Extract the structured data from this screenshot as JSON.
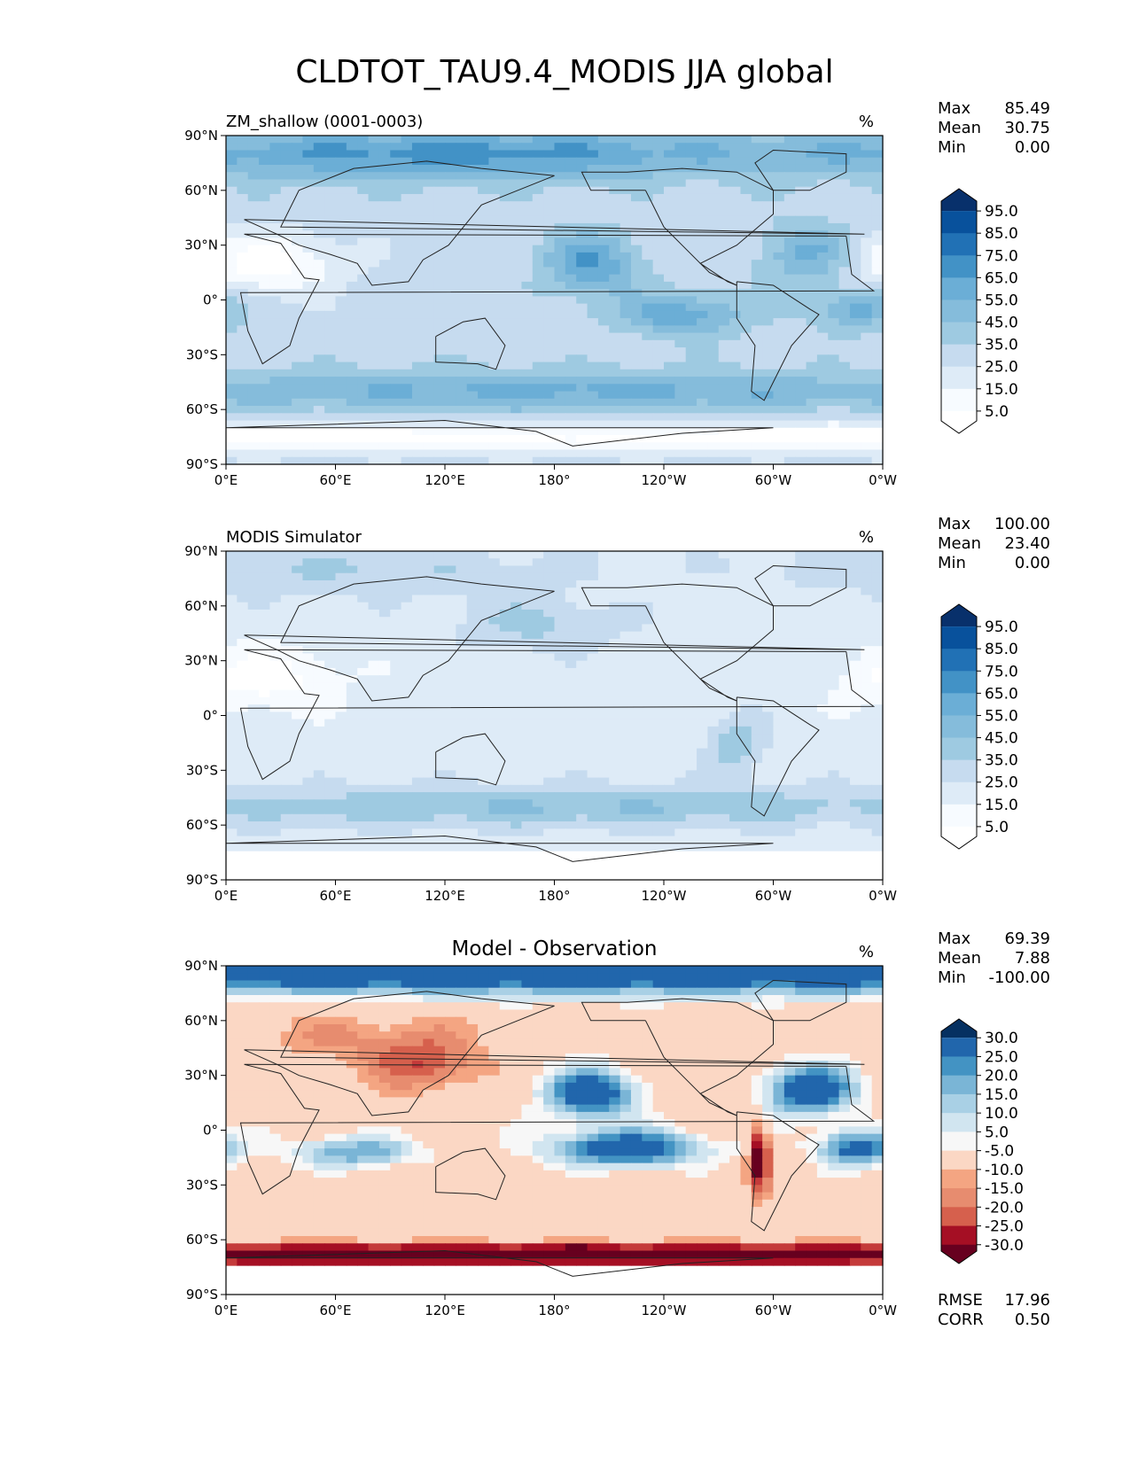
{
  "figure_title": "CLDTOT_TAU9.4_MODIS JJA global",
  "colors": {
    "blues": [
      "#ffffff",
      "#f7fbff",
      "#deebf7",
      "#c6dbef",
      "#9ecae1",
      "#85bcdb",
      "#6baed6",
      "#4292c6",
      "#2171b5",
      "#08519c",
      "#08306b"
    ],
    "diff": [
      "#67001f",
      "#a50f24",
      "#c43a3a",
      "#d6604d",
      "#e78c6f",
      "#f4a582",
      "#fbd7c4",
      "#f7f7f7",
      "#d1e5f0",
      "#a9d0e5",
      "#7ab5d6",
      "#4393c3",
      "#2166ac",
      "#053061"
    ]
  },
  "icons": [
    "hex-colorbar-extension"
  ],
  "chart_data": [
    {
      "type": "heatmap",
      "id": "test",
      "title_left": "ZM_shallow (0001-0003)",
      "units": "%",
      "stats": [
        {
          "label": "Max",
          "value": "85.49"
        },
        {
          "label": "Mean",
          "value": "30.75"
        },
        {
          "label": "Min",
          "value": "0.00"
        }
      ],
      "colorbar_levels": [
        "95.0",
        "85.0",
        "75.0",
        "65.0",
        "55.0",
        "45.0",
        "35.0",
        "25.0",
        "15.0",
        "5.0"
      ],
      "field": {
        "base": 30,
        "amplitude": 1.0,
        "blobs": [
          {
            "lon": 60,
            "lat": 80,
            "slon": 90,
            "slat": 10,
            "amp": 30
          },
          {
            "lon": 200,
            "lat": 80,
            "slon": 80,
            "slat": 10,
            "amp": 25
          },
          {
            "lon": 200,
            "lat": 20,
            "slon": 18,
            "slat": 12,
            "amp": 35
          },
          {
            "lon": 320,
            "lat": 25,
            "slon": 18,
            "slat": 12,
            "amp": 30
          },
          {
            "lon": 250,
            "lat": -8,
            "slon": 25,
            "slat": 8,
            "amp": 32
          },
          {
            "lon": 345,
            "lat": -5,
            "slon": 15,
            "slat": 8,
            "amp": 30
          },
          {
            "lon": 180,
            "lat": -50,
            "slon": 180,
            "slat": 8,
            "amp": 28
          },
          {
            "lon": 0,
            "lat": -75,
            "slon": 400,
            "slat": 6,
            "amp": -30
          },
          {
            "lon": 20,
            "lat": 20,
            "slon": 30,
            "slat": 12,
            "amp": -30
          }
        ]
      },
      "lat_ticks": [
        "90°N",
        "60°N",
        "30°N",
        "0°",
        "30°S",
        "60°S",
        "90°S"
      ],
      "lon_ticks": [
        "0°E",
        "60°E",
        "120°E",
        "180°",
        "120°W",
        "60°W",
        "0°W"
      ],
      "lat_values": [
        90,
        60,
        30,
        0,
        -30,
        -60,
        -90
      ],
      "lon_values": [
        0,
        60,
        120,
        180,
        240,
        300,
        360
      ],
      "colorbar": "blues"
    },
    {
      "type": "heatmap",
      "id": "ref",
      "title_left": "MODIS Simulator",
      "units": "%",
      "stats": [
        {
          "label": "Max",
          "value": "100.00"
        },
        {
          "label": "Mean",
          "value": "23.40"
        },
        {
          "label": "Min",
          "value": "0.00"
        }
      ],
      "colorbar_levels": [
        "95.0",
        "85.0",
        "75.0",
        "65.0",
        "55.0",
        "45.0",
        "35.0",
        "25.0",
        "15.0",
        "5.0"
      ],
      "field": {
        "base": 20,
        "amplitude": 1.0,
        "blobs": [
          {
            "lon": 60,
            "lat": 80,
            "slon": 90,
            "slat": 10,
            "amp": 15
          },
          {
            "lon": 170,
            "lat": 50,
            "slon": 30,
            "slat": 10,
            "amp": 18
          },
          {
            "lon": 180,
            "lat": -50,
            "slon": 180,
            "slat": 8,
            "amp": 25
          },
          {
            "lon": 280,
            "lat": -15,
            "slon": 10,
            "slat": 10,
            "amp": 25
          },
          {
            "lon": 20,
            "lat": 20,
            "slon": 30,
            "slat": 12,
            "amp": -20
          }
        ],
        "missing_south_of": -72
      },
      "lat_ticks": [
        "90°N",
        "60°N",
        "30°N",
        "0°",
        "30°S",
        "60°S",
        "90°S"
      ],
      "lon_ticks": [
        "0°E",
        "60°E",
        "120°E",
        "180°",
        "120°W",
        "60°W",
        "0°W"
      ],
      "lat_values": [
        90,
        60,
        30,
        0,
        -30,
        -60,
        -90
      ],
      "lon_values": [
        0,
        60,
        120,
        180,
        240,
        300,
        360
      ],
      "colorbar": "blues"
    },
    {
      "type": "heatmap",
      "id": "diff",
      "title_center": "Model - Observation",
      "units": "%",
      "stats": [
        {
          "label": "Max",
          "value": "69.39"
        },
        {
          "label": "Mean",
          "value": "7.88"
        },
        {
          "label": "Min",
          "value": "-100.00"
        }
      ],
      "metrics": [
        {
          "label": "RMSE",
          "value": "17.96"
        },
        {
          "label": "CORR",
          "value": "0.50"
        }
      ],
      "colorbar_levels": [
        "30.0",
        "25.0",
        "20.0",
        "15.0",
        "10.0",
        "5.0",
        "-5.0",
        "-10.0",
        "-15.0",
        "-20.0",
        "-25.0",
        "-30.0"
      ],
      "field": {
        "base": 0,
        "amplitude": 1.0,
        "blobs": [
          {
            "lon": 180,
            "lat": 85,
            "slon": 400,
            "slat": 8,
            "amp": 40
          },
          {
            "lon": 200,
            "lat": 20,
            "slon": 18,
            "slat": 10,
            "amp": 40
          },
          {
            "lon": 320,
            "lat": 22,
            "slon": 18,
            "slat": 10,
            "amp": 40
          },
          {
            "lon": 220,
            "lat": -10,
            "slon": 30,
            "slat": 7,
            "amp": 40
          },
          {
            "lon": 345,
            "lat": -10,
            "slon": 15,
            "slat": 7,
            "amp": 35
          },
          {
            "lon": 70,
            "lat": -12,
            "slon": 25,
            "slat": 6,
            "amp": 25
          },
          {
            "lon": 180,
            "lat": -68,
            "slon": 400,
            "slat": 4,
            "amp": -45
          },
          {
            "lon": 110,
            "lat": 35,
            "slon": 20,
            "slat": 10,
            "amp": -18
          },
          {
            "lon": 292,
            "lat": -15,
            "slon": 4,
            "slat": 12,
            "amp": -40
          },
          {
            "lon": 75,
            "lat": 50,
            "slon": 40,
            "slat": 10,
            "amp": -10
          }
        ],
        "missing_south_of": -72
      },
      "lat_ticks": [
        "90°N",
        "60°N",
        "30°N",
        "0°",
        "30°S",
        "60°S",
        "90°S"
      ],
      "lon_ticks": [
        "0°E",
        "60°E",
        "120°E",
        "180°",
        "120°W",
        "60°W",
        "0°W"
      ],
      "lat_values": [
        90,
        60,
        30,
        0,
        -30,
        -60,
        -90
      ],
      "lon_values": [
        0,
        60,
        120,
        180,
        240,
        300,
        360
      ],
      "colorbar": "diff"
    }
  ]
}
